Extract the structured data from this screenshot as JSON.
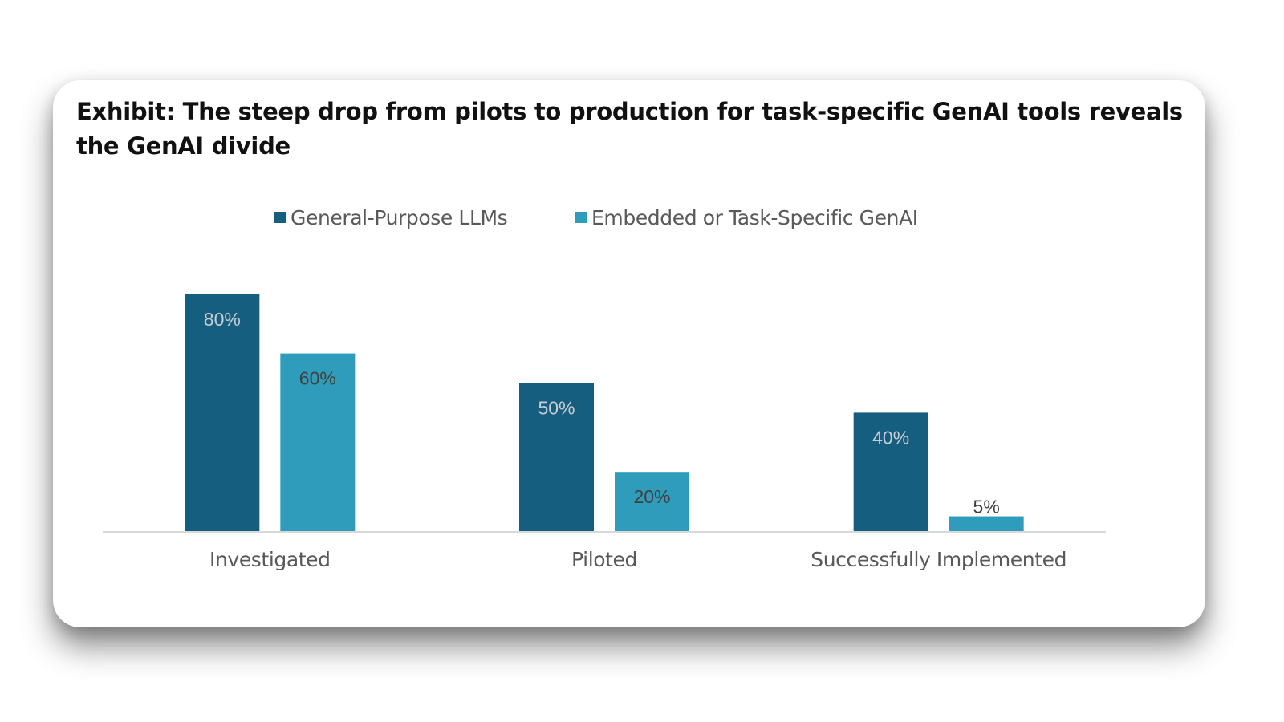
{
  "chart_data": {
    "type": "bar",
    "title": "Exhibit: The steep drop from pilots to production for task-specific GenAI tools reveals the GenAI divide",
    "xlabel": "",
    "ylabel": "",
    "ylim": [
      0,
      100
    ],
    "grid": false,
    "legend_position": "top-center",
    "categories": [
      "Investigated",
      "Piloted",
      "Successfully Implemented"
    ],
    "series": [
      {
        "name": "General-Purpose LLMs",
        "color": "#165E80",
        "label_color": "#C9CED3",
        "values": [
          80,
          50,
          40
        ],
        "labels": [
          "80%",
          "50%",
          "40%"
        ]
      },
      {
        "name": "Embedded or Task-Specific GenAI",
        "color": "#2E9CBA",
        "label_color": "#404040",
        "values": [
          60,
          20,
          5
        ],
        "labels": [
          "60%",
          "20%",
          "5%"
        ]
      }
    ],
    "axis_color": "#D9D9D9"
  }
}
